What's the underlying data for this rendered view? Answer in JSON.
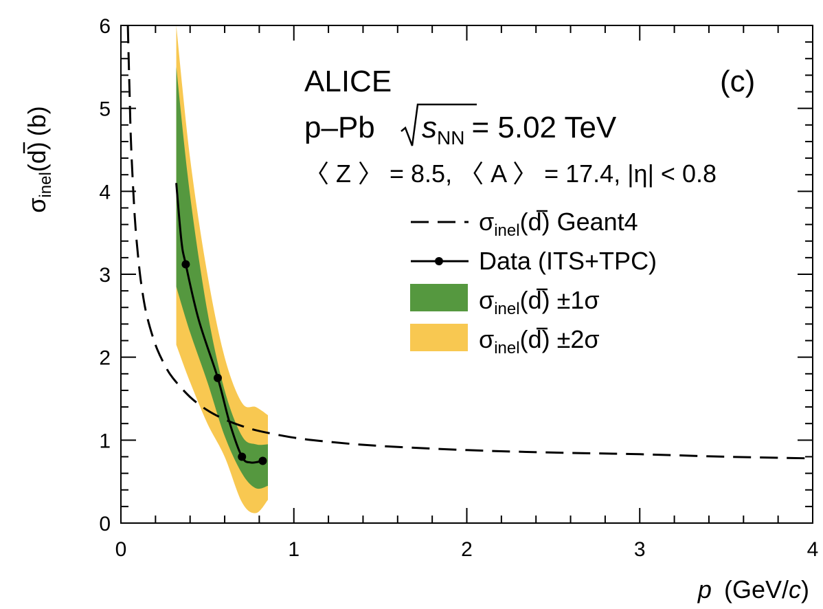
{
  "colors": {
    "band_1sigma": "#55983f",
    "band_2sigma": "#f8c851",
    "line": "#000000",
    "background": "#ffffff"
  },
  "annotations": {
    "experiment": "ALICE",
    "panel": "(c)",
    "system_prefix": "p–Pb",
    "energy_symbol": "s",
    "energy_subscript": "NN",
    "energy_value": "= 5.02 TeV",
    "kinematics": "〈 Z 〉 = 8.5, 〈 A 〉 = 17.4, |η| < 0.8"
  },
  "axes": {
    "x_label_var": "p",
    "x_label_unit_open": "(GeV/",
    "x_label_unit_c": "c",
    "x_label_unit_close": ")",
    "y_label_sigma": "σ",
    "y_label_sub": "inel",
    "y_label_d": "(d)",
    "y_label_unit": "(b)"
  },
  "legend": {
    "geant4": {
      "sub": "inel",
      "suffix": "(d) Geant4"
    },
    "data": {
      "label": "Data (ITS+TPC)"
    },
    "band1": {
      "sub": "inel",
      "suffix": "(d) ±1σ"
    },
    "band2": {
      "sub": "inel",
      "suffix": "(d) ±2σ"
    },
    "sigma": "σ"
  },
  "chart_data": {
    "type": "line",
    "xlabel": "p (GeV/c)",
    "ylabel": "σinel(d̅) (b)",
    "xlim": [
      0,
      4
    ],
    "ylim": [
      0,
      6
    ],
    "x_ticks": [
      0,
      1,
      2,
      3,
      4
    ],
    "y_ticks": [
      0,
      1,
      2,
      3,
      4,
      5,
      6
    ],
    "x_tick_labels": [
      "0",
      "1",
      "2",
      "3",
      "4"
    ],
    "y_tick_labels": [
      "0",
      "1",
      "2",
      "3",
      "4",
      "5",
      "6"
    ],
    "legend_position": "right",
    "series": [
      {
        "name": "σinel(d̅) Geant4",
        "style": "dashed",
        "x": [
          0.04,
          0.05,
          0.06,
          0.08,
          0.1,
          0.12,
          0.15,
          0.2,
          0.25,
          0.3,
          0.4,
          0.5,
          0.6,
          0.7,
          0.8,
          1.0,
          1.2,
          1.5,
          2.0,
          2.5,
          3.0,
          3.5,
          4.0
        ],
        "y": [
          6.0,
          5.2,
          4.5,
          3.7,
          3.2,
          2.85,
          2.5,
          2.15,
          1.92,
          1.75,
          1.52,
          1.36,
          1.25,
          1.17,
          1.11,
          1.03,
          0.98,
          0.93,
          0.88,
          0.85,
          0.83,
          0.8,
          0.78
        ]
      },
      {
        "name": "Data (ITS+TPC)",
        "style": "solid",
        "x": [
          0.32,
          0.35,
          0.375,
          0.45,
          0.56,
          0.63,
          0.7,
          0.75,
          0.82
        ],
        "y": [
          4.1,
          3.4,
          3.12,
          2.45,
          1.75,
          1.2,
          0.8,
          0.73,
          0.75
        ]
      },
      {
        "name": "Data points",
        "style": "markers",
        "x": [
          0.375,
          0.56,
          0.7,
          0.82
        ],
        "y": [
          3.12,
          1.75,
          0.8,
          0.75
        ]
      }
    ],
    "bands": [
      {
        "name": "σinel(d̅) ±2σ",
        "x": [
          0.32,
          0.4,
          0.5,
          0.6,
          0.7,
          0.78,
          0.85
        ],
        "upper": [
          6.0,
          4.4,
          3.0,
          2.0,
          1.45,
          1.4,
          1.3
        ],
        "lower": [
          2.15,
          1.7,
          1.2,
          0.8,
          0.25,
          0.12,
          0.28
        ]
      },
      {
        "name": "σinel(d̅) ±1σ",
        "x": [
          0.32,
          0.4,
          0.5,
          0.6,
          0.7,
          0.78,
          0.85
        ],
        "upper": [
          5.5,
          3.95,
          2.55,
          1.6,
          1.05,
          0.95,
          0.95
        ],
        "lower": [
          2.85,
          2.3,
          1.7,
          1.05,
          0.6,
          0.42,
          0.45
        ]
      }
    ]
  }
}
